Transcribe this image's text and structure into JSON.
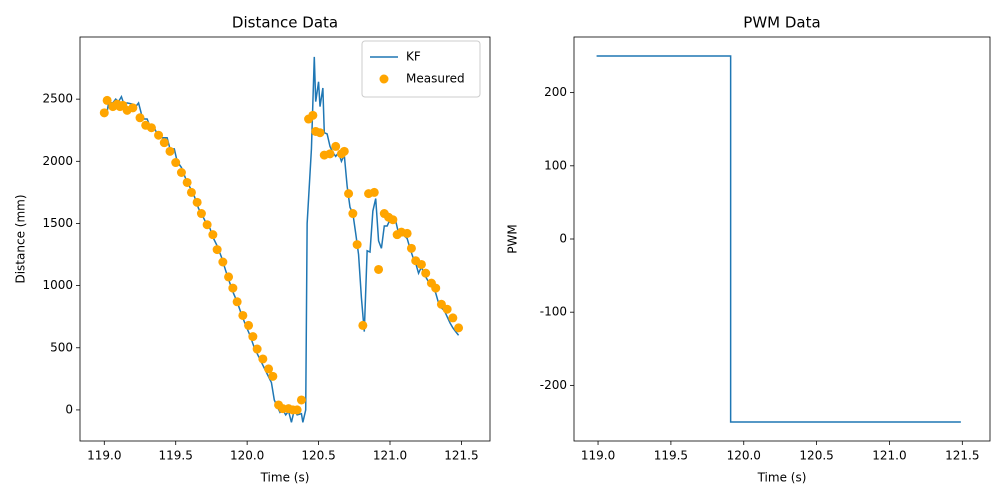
{
  "chart_data": [
    {
      "type": "line",
      "title": "Distance Data",
      "xlabel": "Time (s)",
      "ylabel": "Distance (mm)",
      "xlim": [
        118.83,
        121.7
      ],
      "ylim": [
        -250,
        3000
      ],
      "xticks": [
        {
          "value": 119,
          "label": "119.0"
        },
        119.5,
        {
          "value": 120,
          "label": "120.0"
        },
        120.5,
        {
          "value": 121,
          "label": "121.0"
        },
        121.5
      ],
      "yticks": [
        0,
        500,
        1000,
        1500,
        2000,
        2500
      ],
      "legend": "upper right",
      "series": [
        {
          "name": "KF",
          "type": "line",
          "color": "#1f77b4",
          "x": [
            119.0,
            119.02,
            119.03,
            119.06,
            119.08,
            119.1,
            119.12,
            119.14,
            119.16,
            119.2,
            119.22,
            119.24,
            119.26,
            119.28,
            119.3,
            119.32,
            119.35,
            119.37,
            119.4,
            119.44,
            119.46,
            119.49,
            119.51,
            119.54,
            119.57,
            119.6,
            119.63,
            119.66,
            119.68,
            119.71,
            119.74,
            119.76,
            119.79,
            119.82,
            119.85,
            119.87,
            119.9,
            119.93,
            119.96,
            119.99,
            120.02,
            120.05,
            120.08,
            120.11,
            120.14,
            120.17,
            120.19,
            120.21,
            120.23,
            120.25,
            120.27,
            120.29,
            120.31,
            120.33,
            120.35,
            120.38,
            120.39,
            120.41,
            120.42,
            120.45,
            120.47,
            120.48,
            120.5,
            120.51,
            120.53,
            120.54,
            120.56,
            120.58,
            120.6,
            120.62,
            120.64,
            120.66,
            120.68,
            120.7,
            120.72,
            120.74,
            120.76,
            120.78,
            120.8,
            120.82,
            120.84,
            120.86,
            120.88,
            120.9,
            120.92,
            120.94,
            120.96,
            120.98,
            121.0,
            121.02,
            121.04,
            121.06,
            121.08,
            121.1,
            121.12,
            121.14,
            121.16,
            121.18,
            121.2,
            121.22,
            121.24,
            121.26,
            121.28,
            121.3,
            121.32,
            121.34,
            121.36,
            121.38,
            121.4,
            121.42,
            121.44,
            121.46,
            121.48
          ],
          "values": [
            2420,
            2400,
            2470,
            2470,
            2500,
            2480,
            2520,
            2450,
            2470,
            2460,
            2440,
            2470,
            2380,
            2340,
            2340,
            2280,
            2270,
            2220,
            2190,
            2190,
            2100,
            2100,
            2000,
            1950,
            1860,
            1790,
            1720,
            1620,
            1580,
            1510,
            1460,
            1390,
            1320,
            1230,
            1120,
            1050,
            950,
            870,
            770,
            680,
            600,
            500,
            430,
            360,
            290,
            220,
            80,
            30,
            -20,
            0,
            -40,
            -10,
            -100,
            0,
            -40,
            -30,
            -100,
            0,
            1500,
            2100,
            2840,
            2480,
            2640,
            2440,
            2590,
            2230,
            2220,
            2120,
            2070,
            2040,
            2070,
            2000,
            2050,
            1800,
            1630,
            1580,
            1420,
            1250,
            900,
            630,
            1280,
            1270,
            1600,
            1700,
            1360,
            1300,
            1480,
            1480,
            1530,
            1520,
            1520,
            1420,
            1420,
            1400,
            1380,
            1300,
            1230,
            1180,
            1100,
            1150,
            1090,
            1050,
            1010,
            990,
            940,
            860,
            820,
            800,
            750,
            700,
            660,
            630,
            600
          ]
        },
        {
          "name": "Measured",
          "type": "scatter",
          "color": "#ffa500",
          "x": [
            119.0,
            119.02,
            119.06,
            119.09,
            119.11,
            119.13,
            119.16,
            119.2,
            119.25,
            119.29,
            119.33,
            119.38,
            119.42,
            119.46,
            119.5,
            119.54,
            119.58,
            119.61,
            119.65,
            119.68,
            119.72,
            119.76,
            119.79,
            119.83,
            119.87,
            119.9,
            119.93,
            119.97,
            120.01,
            120.04,
            120.07,
            120.11,
            120.15,
            120.18,
            120.22,
            120.25,
            120.29,
            120.32,
            120.35,
            120.38,
            120.43,
            120.46,
            120.48,
            120.51,
            120.54,
            120.58,
            120.62,
            120.66,
            120.68,
            120.71,
            120.74,
            120.77,
            120.81,
            120.85,
            120.89,
            120.92,
            120.96,
            120.99,
            121.02,
            121.05,
            121.08,
            121.12,
            121.15,
            121.18,
            121.22,
            121.25,
            121.29,
            121.32,
            121.36,
            121.4,
            121.44,
            121.48
          ],
          "values": [
            2390,
            2490,
            2440,
            2460,
            2440,
            2450,
            2410,
            2430,
            2350,
            2290,
            2270,
            2210,
            2150,
            2080,
            1990,
            1910,
            1830,
            1750,
            1670,
            1580,
            1490,
            1410,
            1290,
            1190,
            1070,
            980,
            870,
            760,
            680,
            590,
            490,
            410,
            330,
            270,
            40,
            10,
            10,
            0,
            0,
            80,
            2340,
            2370,
            2240,
            2230,
            2050,
            2060,
            2120,
            2060,
            2080,
            1740,
            1580,
            1330,
            680,
            1740,
            1750,
            1130,
            1580,
            1550,
            1530,
            1410,
            1430,
            1420,
            1300,
            1200,
            1170,
            1100,
            1020,
            980,
            850,
            810,
            740,
            660
          ]
        }
      ]
    },
    {
      "type": "line",
      "title": "PWM Data",
      "xlabel": "Time (s)",
      "ylabel": "PWM",
      "xlim": [
        118.835,
        121.69
      ],
      "ylim": [
        -276,
        276
      ],
      "xticks": [
        {
          "value": 119,
          "label": "119.0"
        },
        119.5,
        {
          "value": 120,
          "label": "120.0"
        },
        120.5,
        {
          "value": 121,
          "label": "121.0"
        },
        121.5
      ],
      "yticks": [
        -200,
        -100,
        0,
        100,
        200
      ],
      "series": [
        {
          "type": "line",
          "color": "#1f77b4",
          "x": [
            118.99,
            119.91,
            119.91,
            121.49
          ],
          "values": [
            250,
            250,
            -250,
            -250
          ]
        }
      ]
    }
  ]
}
